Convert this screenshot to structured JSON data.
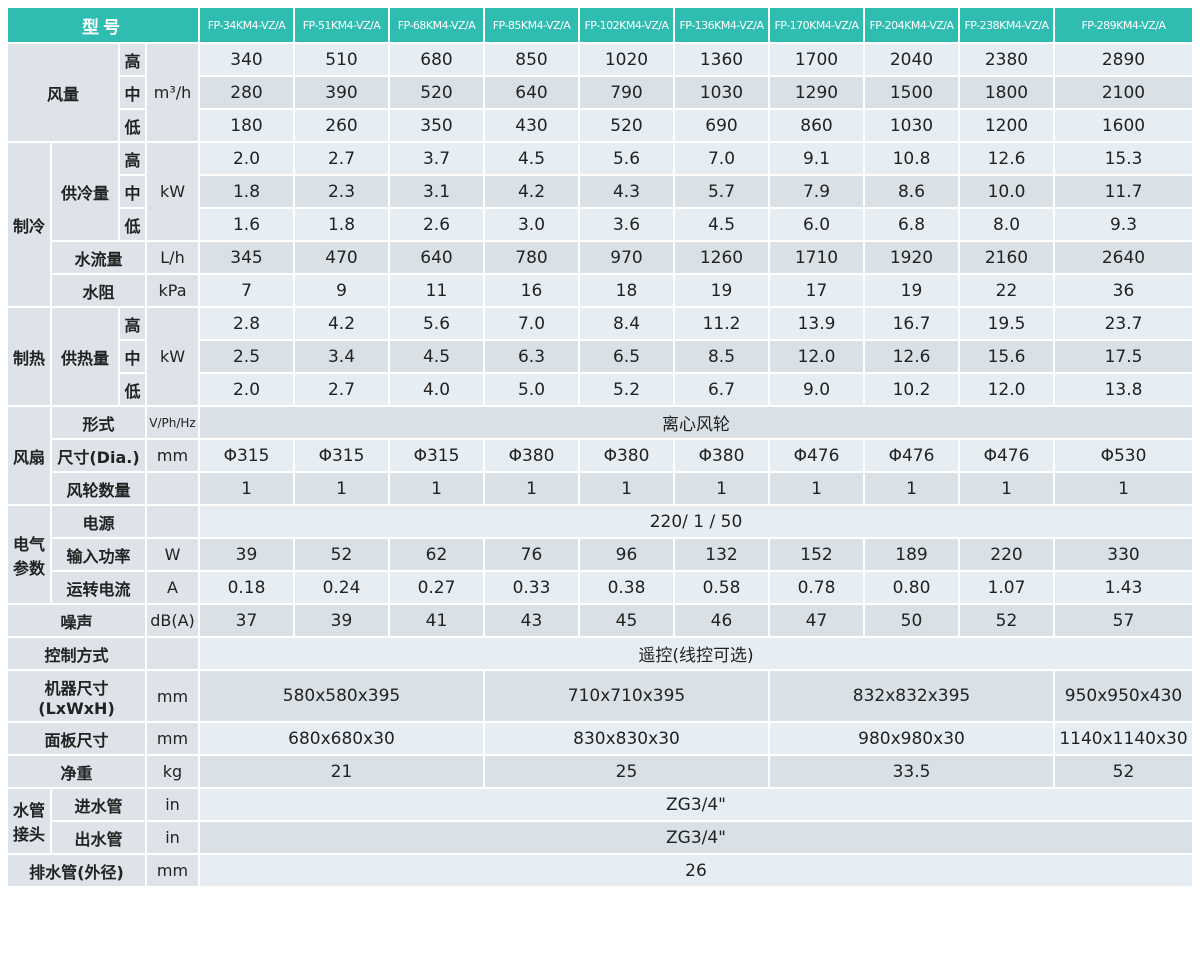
{
  "header": {
    "model_label": "型号",
    "models": [
      "FP-34KM4-VZ/A",
      "FP-51KM4-VZ/A",
      "FP-68KM4-VZ/A",
      "FP-85KM4-VZ/A",
      "FP-102KM4-VZ/A",
      "FP-136KM4-VZ/A",
      "FP-170KM4-VZ/A",
      "FP-204KM4-VZ/A",
      "FP-238KM4-VZ/A",
      "FP-289KM4-VZ/A"
    ]
  },
  "levels": {
    "high": "高",
    "mid": "中",
    "low": "低"
  },
  "airflow": {
    "label": "风量",
    "unit": "m³/h",
    "high": [
      "340",
      "510",
      "680",
      "850",
      "1020",
      "1360",
      "1700",
      "2040",
      "2380",
      "2890"
    ],
    "mid": [
      "280",
      "390",
      "520",
      "640",
      "790",
      "1030",
      "1290",
      "1500",
      "1800",
      "2100"
    ],
    "low": [
      "180",
      "260",
      "350",
      "430",
      "520",
      "690",
      "860",
      "1030",
      "1200",
      "1600"
    ]
  },
  "cooling": {
    "label": "制冷",
    "capacity_label": "供冷量",
    "capacity_unit": "kW",
    "high": [
      "2.0",
      "2.7",
      "3.7",
      "4.5",
      "5.6",
      "7.0",
      "9.1",
      "10.8",
      "12.6",
      "15.3"
    ],
    "mid": [
      "1.8",
      "2.3",
      "3.1",
      "4.2",
      "4.3",
      "5.7",
      "7.9",
      "8.6",
      "10.0",
      "11.7"
    ],
    "low": [
      "1.6",
      "1.8",
      "2.6",
      "3.0",
      "3.6",
      "4.5",
      "6.0",
      "6.8",
      "8.0",
      "9.3"
    ],
    "water_flow_label": "水流量",
    "water_flow_unit": "L/h",
    "water_flow": [
      "345",
      "470",
      "640",
      "780",
      "970",
      "1260",
      "1710",
      "1920",
      "2160",
      "2640"
    ],
    "water_resistance_label": "水阻",
    "water_resistance_unit": "kPa",
    "water_resistance": [
      "7",
      "9",
      "11",
      "16",
      "18",
      "19",
      "17",
      "19",
      "22",
      "36"
    ]
  },
  "heating": {
    "label": "制热",
    "capacity_label": "供热量",
    "capacity_unit": "kW",
    "high": [
      "2.8",
      "4.2",
      "5.6",
      "7.0",
      "8.4",
      "11.2",
      "13.9",
      "16.7",
      "19.5",
      "23.7"
    ],
    "mid": [
      "2.5",
      "3.4",
      "4.5",
      "6.3",
      "6.5",
      "8.5",
      "12.0",
      "12.6",
      "15.6",
      "17.5"
    ],
    "low": [
      "2.0",
      "2.7",
      "4.0",
      "5.0",
      "5.2",
      "6.7",
      "9.0",
      "10.2",
      "12.0",
      "13.8"
    ]
  },
  "fan": {
    "label": "风扇",
    "type_label": "形式",
    "type_unit": "V/Ph/Hz",
    "type_value": [
      "离心风轮"
    ],
    "size_label": "尺寸(Dia.)",
    "size_unit": "mm",
    "size": [
      "Φ315",
      "Φ315",
      "Φ315",
      "Φ380",
      "Φ380",
      "Φ380",
      "Φ476",
      "Φ476",
      "Φ476",
      "Φ530"
    ],
    "count_label": "风轮数量",
    "count": [
      "1",
      "1",
      "1",
      "1",
      "1",
      "1",
      "1",
      "1",
      "1",
      "1"
    ]
  },
  "electrical": {
    "label": "电气参数",
    "power_supply_label": "电源",
    "power_supply": [
      "220/ 1 / 50"
    ],
    "input_power_label": "输入功率",
    "input_power_unit": "W",
    "input_power": [
      "39",
      "52",
      "62",
      "76",
      "96",
      "132",
      "152",
      "189",
      "220",
      "330"
    ],
    "current_label": "运转电流",
    "current_unit": "A",
    "current": [
      "0.18",
      "0.24",
      "0.27",
      "0.33",
      "0.38",
      "0.58",
      "0.78",
      "0.80",
      "1.07",
      "1.43"
    ]
  },
  "noise": {
    "label": "噪声",
    "unit": "dB(A)",
    "values": [
      "37",
      "39",
      "41",
      "43",
      "45",
      "46",
      "47",
      "50",
      "52",
      "57"
    ]
  },
  "control": {
    "label": "控制方式",
    "values": [
      "遥控(线控可选)"
    ]
  },
  "unit_size": {
    "label": "机器尺寸 (LxWxH)",
    "unit": "mm",
    "values": [
      "580x580x395",
      "710x710x395",
      "832x832x395",
      "950x950x430"
    ]
  },
  "panel_size": {
    "label": "面板尺寸",
    "unit": "mm",
    "values": [
      "680x680x30",
      "830x830x30",
      "980x980x30",
      "1140x1140x30"
    ]
  },
  "net_weight": {
    "label": "净重",
    "unit": "kg",
    "values": [
      "21",
      "25",
      "33.5",
      "52"
    ]
  },
  "water_pipe": {
    "label": "水管接头",
    "inlet_label": "进水管",
    "inlet_unit": "in",
    "inlet": [
      "ZG3/4\""
    ],
    "outlet_label": "出水管",
    "outlet_unit": "in",
    "outlet": [
      "ZG3/4\""
    ]
  },
  "drain": {
    "label": "排水管(外径)",
    "unit": "mm",
    "values": [
      "26"
    ]
  },
  "colors": {
    "header": "#2fbdb1",
    "row_light": "#e7eef3",
    "row_dark": "#d9e1e6",
    "label": "#dde3e8"
  }
}
